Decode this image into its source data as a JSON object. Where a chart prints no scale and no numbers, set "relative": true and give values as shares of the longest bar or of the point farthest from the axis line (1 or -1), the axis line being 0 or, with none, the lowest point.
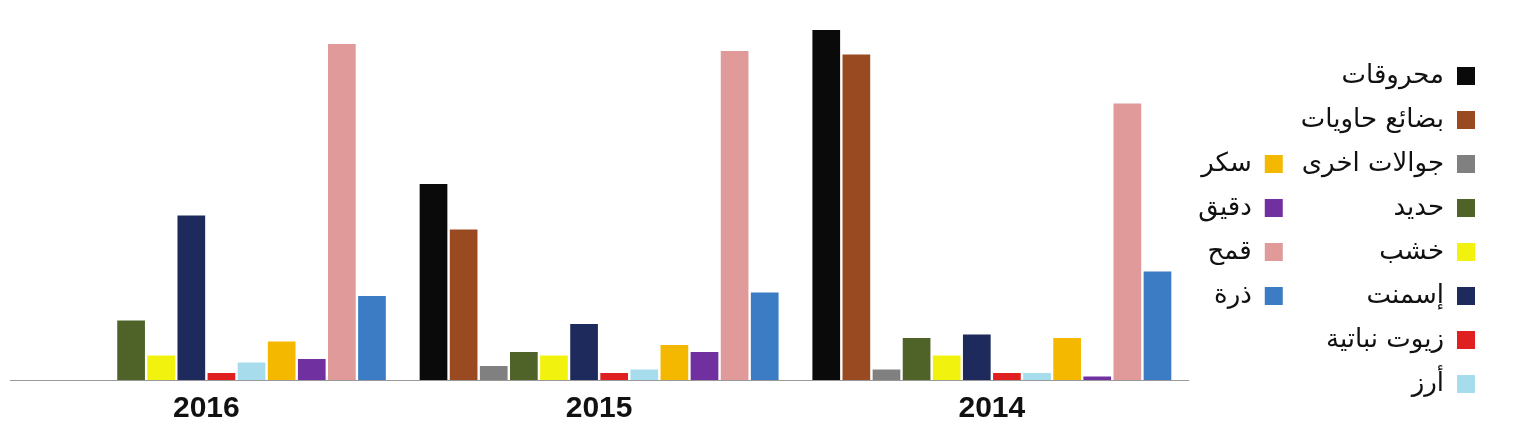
{
  "chart_data": {
    "type": "bar",
    "relative": true,
    "categories": [
      "2016",
      "2015",
      "2014"
    ],
    "legend": "right",
    "grid": false,
    "series": [
      {
        "name": "محروقات",
        "color": "#0a0a0a",
        "values": [
          null,
          0.56,
          1
        ]
      },
      {
        "name": "بضائع حاويات",
        "color": "#9a4a20",
        "values": [
          null,
          0.43,
          0.93
        ]
      },
      {
        "name": "جوالات اخرى",
        "color": "#808080",
        "values": [
          null,
          0.04,
          0.03
        ]
      },
      {
        "name": "حديد",
        "color": "#4f6228",
        "values": [
          0.17,
          0.08,
          0.12
        ]
      },
      {
        "name": "خشب",
        "color": "#f2f20f",
        "values": [
          0.07,
          0.07,
          0.07
        ]
      },
      {
        "name": "إسمنت",
        "color": "#1f2a5c",
        "values": [
          0.47,
          0.16,
          0.13
        ]
      },
      {
        "name": "زيوت نباتية",
        "color": "#e02020",
        "values": [
          0.02,
          0.02,
          0.02
        ]
      },
      {
        "name": "أرز",
        "color": "#a6dceb",
        "values": [
          0.05,
          0.03,
          0.02
        ]
      },
      {
        "name": "سكر",
        "color": "#f5b800",
        "values": [
          0.11,
          0.1,
          0.12
        ]
      },
      {
        "name": "دقيق",
        "color": "#7030a0",
        "values": [
          0.06,
          0.08,
          0.01
        ]
      },
      {
        "name": "قمح",
        "color": "#e09a9a",
        "values": [
          0.96,
          0.94,
          0.79
        ]
      },
      {
        "name": "ذرة",
        "color": "#3b7cc4",
        "values": [
          0.24,
          0.25,
          0.31
        ]
      }
    ]
  }
}
